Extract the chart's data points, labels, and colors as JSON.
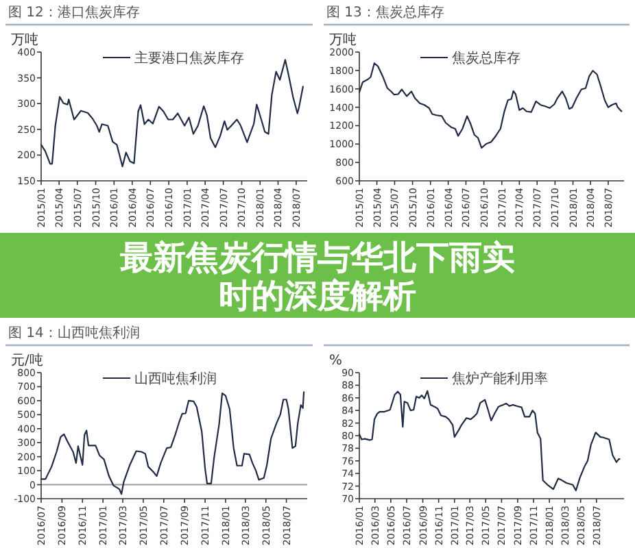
{
  "chart_data": [
    {
      "type": "line",
      "title": "图 12：港口焦炭库存",
      "ylabel": "万吨",
      "legend": "top",
      "marker": "none",
      "line_style": "solid",
      "xlim": [
        "2015-01-01",
        "2018-08-25"
      ],
      "ylim": [
        150,
        400
      ],
      "yticks": [
        150,
        200,
        250,
        300,
        350,
        400
      ],
      "xticks": [
        {
          "value": "2015-01",
          "label": "2015/01"
        },
        {
          "value": "2015-04",
          "label": "2015/04"
        },
        {
          "value": "2015-07",
          "label": "2015/07"
        },
        {
          "value": "2015-10",
          "label": "2015/10"
        },
        {
          "value": "2016-01",
          "label": "2016/01"
        },
        {
          "value": "2016-04",
          "label": "2016/04"
        },
        {
          "value": "2016-07",
          "label": "2016/07"
        },
        {
          "value": "2016-10",
          "label": "2016/10"
        },
        {
          "value": "2017-01",
          "label": "2017/01"
        },
        {
          "value": "2017-04",
          "label": "2017/04"
        },
        {
          "value": "2017-07",
          "label": "2017/07"
        },
        {
          "value": "2017-10",
          "label": "2017/10"
        },
        {
          "value": "2018-01",
          "label": "2018/01"
        },
        {
          "value": "2018-04",
          "label": "2018/04"
        },
        {
          "value": "2018-07",
          "label": "2018/07"
        }
      ],
      "series": [
        {
          "name": "主要港口焦炭库存",
          "color": "#1f2a44",
          "x": [
            "2015-01-01",
            "2015-01-21",
            "2015-02-15",
            "2015-02-25",
            "2015-03-13",
            "2015-04-04",
            "2015-04-22",
            "2015-05-13",
            "2015-05-19",
            "2015-06-15",
            "2015-07-19",
            "2015-08-22",
            "2015-09-15",
            "2015-10-07",
            "2015-10-19",
            "2015-11-01",
            "2015-12-01",
            "2015-12-25",
            "2016-01-15",
            "2016-02-12",
            "2016-03-01",
            "2016-03-21",
            "2016-04-10",
            "2016-05-01",
            "2016-05-13",
            "2016-06-01",
            "2016-06-21",
            "2016-07-13",
            "2016-08-13",
            "2016-09-04",
            "2016-09-28",
            "2016-10-21",
            "2016-11-15",
            "2016-12-19",
            "2017-01-10",
            "2017-02-01",
            "2017-02-24",
            "2017-03-25",
            "2017-04-10",
            "2017-04-28",
            "2017-05-22",
            "2017-06-15",
            "2017-07-07",
            "2017-07-21",
            "2017-08-10",
            "2017-09-07",
            "2017-09-25",
            "2017-10-28",
            "2017-12-01",
            "2017-12-15",
            "2018-01-04",
            "2018-01-25",
            "2018-02-12",
            "2018-03-01",
            "2018-03-22",
            "2018-04-10",
            "2018-05-07",
            "2018-05-25",
            "2018-06-15",
            "2018-07-07",
            "2018-07-15",
            "2018-08-04"
          ],
          "values": [
            220,
            208,
            183,
            183,
            257,
            313,
            301,
            298,
            308,
            269,
            286,
            282,
            271,
            257,
            245,
            260,
            257,
            226,
            220,
            178,
            205,
            188,
            184,
            285,
            297,
            260,
            269,
            261,
            294,
            285,
            269,
            269,
            281,
            257,
            273,
            241,
            257,
            295,
            277,
            233,
            215,
            237,
            266,
            249,
            257,
            269,
            258,
            225,
            261,
            298,
            273,
            245,
            241,
            317,
            362,
            346,
            385,
            353,
            313,
            281,
            293,
            333
          ]
        }
      ]
    },
    {
      "type": "line",
      "title": "图 13：焦炭总库存",
      "ylabel": "万吨",
      "legend": "top",
      "marker": "none",
      "line_style": "solid",
      "xlim": [
        "2015-01-01",
        "2018-09-20"
      ],
      "ylim": [
        600,
        2000
      ],
      "yticks": [
        600,
        800,
        1000,
        1200,
        1400,
        1600,
        1800,
        2000
      ],
      "xticks": [
        {
          "value": "2015-01",
          "label": "2015/01"
        },
        {
          "value": "2015-04",
          "label": "2015/04"
        },
        {
          "value": "2015-07",
          "label": "2015/07"
        },
        {
          "value": "2015-10",
          "label": "2015/10"
        },
        {
          "value": "2016-01",
          "label": "2016/01"
        },
        {
          "value": "2016-04",
          "label": "2016/04"
        },
        {
          "value": "2016-07",
          "label": "2016/07"
        },
        {
          "value": "2016-10",
          "label": "2016/10"
        },
        {
          "value": "2017-01",
          "label": "2017/01"
        },
        {
          "value": "2017-04",
          "label": "2017/04"
        },
        {
          "value": "2017-07",
          "label": "2017/07"
        },
        {
          "value": "2017-10",
          "label": "2017/10"
        },
        {
          "value": "2018-01",
          "label": "2018/01"
        },
        {
          "value": "2018-04",
          "label": "2018/04"
        },
        {
          "value": "2018-07",
          "label": "2018/07"
        }
      ],
      "series": [
        {
          "name": "焦炭总库存",
          "color": "#1f2a44",
          "x": [
            "2015-01-01",
            "2015-01-18",
            "2015-02-13",
            "2015-02-28",
            "2015-03-19",
            "2015-04-07",
            "2015-05-01",
            "2015-05-25",
            "2015-06-13",
            "2015-06-28",
            "2015-07-19",
            "2015-08-07",
            "2015-09-01",
            "2015-09-25",
            "2015-10-13",
            "2015-11-07",
            "2015-12-01",
            "2015-12-25",
            "2016-01-10",
            "2016-02-01",
            "2016-02-28",
            "2016-03-19",
            "2016-04-16",
            "2016-05-07",
            "2016-05-22",
            "2016-06-13",
            "2016-07-07",
            "2016-07-25",
            "2016-08-13",
            "2016-09-01",
            "2016-09-19",
            "2016-10-13",
            "2016-11-07",
            "2016-12-01",
            "2016-12-25",
            "2017-01-13",
            "2017-02-01",
            "2017-02-19",
            "2017-03-01",
            "2017-03-13",
            "2017-04-01",
            "2017-04-19",
            "2017-05-07",
            "2017-06-01",
            "2017-06-25",
            "2017-07-19",
            "2017-08-10",
            "2017-09-04",
            "2017-09-28",
            "2017-10-13",
            "2017-11-07",
            "2017-11-25",
            "2017-12-13",
            "2017-12-28",
            "2018-01-19",
            "2018-02-13",
            "2018-03-07",
            "2018-03-25",
            "2018-04-13",
            "2018-05-04",
            "2018-05-19",
            "2018-06-13",
            "2018-07-01",
            "2018-07-19",
            "2018-08-10",
            "2018-08-19",
            "2018-09-07"
          ],
          "values": [
            1564,
            1672,
            1702,
            1728,
            1879,
            1844,
            1736,
            1607,
            1572,
            1538,
            1542,
            1594,
            1520,
            1572,
            1499,
            1443,
            1425,
            1391,
            1326,
            1313,
            1304,
            1231,
            1183,
            1166,
            1088,
            1166,
            1304,
            1218,
            1101,
            1067,
            959,
            1002,
            1023,
            1088,
            1166,
            1347,
            1477,
            1490,
            1576,
            1542,
            1369,
            1391,
            1356,
            1347,
            1464,
            1425,
            1412,
            1391,
            1434,
            1499,
            1572,
            1499,
            1382,
            1399,
            1499,
            1594,
            1607,
            1736,
            1797,
            1758,
            1659,
            1477,
            1399,
            1425,
            1443,
            1399,
            1356
          ]
        }
      ]
    },
    {
      "type": "line",
      "title": "图 14：山西吨焦利润",
      "ylabel": "元/吨",
      "legend": "top",
      "marker": "none",
      "line_style": "solid",
      "xlim": [
        "2016-07-01",
        "2018-09-01"
      ],
      "ylim": [
        -100,
        800
      ],
      "yticks": [
        -100,
        0,
        100,
        200,
        300,
        400,
        500,
        600,
        700,
        800
      ],
      "xticks": [
        {
          "value": "2016-07",
          "label": "2016/07"
        },
        {
          "value": "2016-09",
          "label": "2016/09"
        },
        {
          "value": "2016-11",
          "label": "2016/11"
        },
        {
          "value": "2017-01",
          "label": "2017/01"
        },
        {
          "value": "2017-03",
          "label": "2017/03"
        },
        {
          "value": "2017-05",
          "label": "2017/05"
        },
        {
          "value": "2017-07",
          "label": "2017/07"
        },
        {
          "value": "2017-09",
          "label": "2017/09"
        },
        {
          "value": "2017-11",
          "label": "2017/11"
        },
        {
          "value": "2018-01",
          "label": "2018/01"
        },
        {
          "value": "2018-03",
          "label": "2018/03"
        },
        {
          "value": "2018-05",
          "label": "2018/05"
        },
        {
          "value": "2018-07",
          "label": "2018/07"
        }
      ],
      "ref_lines": [
        {
          "axis": "y",
          "value": 0,
          "color": "#9a9a9a"
        }
      ],
      "series": [
        {
          "name": "山西吨焦利润",
          "color": "#1f2a44",
          "x": [
            "2016-07-01",
            "2016-07-14",
            "2016-08-01",
            "2016-08-16",
            "2016-08-28",
            "2016-09-07",
            "2016-09-19",
            "2016-10-04",
            "2016-10-13",
            "2016-10-19",
            "2016-11-01",
            "2016-11-07",
            "2016-11-13",
            "2016-11-19",
            "2016-12-10",
            "2016-12-22",
            "2017-01-04",
            "2017-01-19",
            "2017-02-01",
            "2017-02-19",
            "2017-02-25",
            "2017-03-04",
            "2017-03-22",
            "2017-04-10",
            "2017-04-25",
            "2017-05-07",
            "2017-05-16",
            "2017-06-01",
            "2017-06-10",
            "2017-06-22",
            "2017-07-10",
            "2017-07-22",
            "2017-08-04",
            "2017-08-16",
            "2017-08-25",
            "2017-09-04",
            "2017-09-13",
            "2017-09-28",
            "2017-10-07",
            "2017-10-22",
            "2017-11-01",
            "2017-11-07",
            "2017-11-19",
            "2017-11-28",
            "2017-12-13",
            "2017-12-22",
            "2018-01-01",
            "2018-01-13",
            "2018-01-25",
            "2018-02-04",
            "2018-02-19",
            "2018-02-25",
            "2018-03-13",
            "2018-03-22",
            "2018-04-01",
            "2018-04-10",
            "2018-04-25",
            "2018-05-04",
            "2018-05-16",
            "2018-06-01",
            "2018-06-13",
            "2018-06-22",
            "2018-07-01",
            "2018-07-07",
            "2018-07-19",
            "2018-07-28",
            "2018-08-04",
            "2018-08-13",
            "2018-08-19",
            "2018-08-22"
          ],
          "values": [
            40,
            40,
            128,
            235,
            341,
            360,
            301,
            235,
            155,
            275,
            141,
            355,
            387,
            280,
            280,
            208,
            181,
            61,
            -5,
            -32,
            -67,
            21,
            141,
            240,
            235,
            221,
            128,
            88,
            61,
            155,
            261,
            267,
            355,
            448,
            507,
            509,
            600,
            595,
            555,
            381,
            115,
            8,
            8,
            195,
            435,
            653,
            635,
            541,
            261,
            136,
            136,
            221,
            216,
            155,
            101,
            35,
            48,
            141,
            328,
            435,
            501,
            608,
            608,
            541,
            261,
            275,
            440,
            568,
            547,
            661
          ]
        }
      ]
    },
    {
      "type": "line",
      "ylabel": "%",
      "legend": "top",
      "marker": "none",
      "line_style": "solid",
      "xlim": [
        "2016-01-01",
        "2018-10-15"
      ],
      "ylim": [
        70,
        90
      ],
      "yticks": [
        70,
        72,
        74,
        76,
        78,
        80,
        82,
        84,
        86,
        88,
        90
      ],
      "xticks": [
        {
          "value": "2016-01",
          "label": "2016/01"
        },
        {
          "value": "2016-03",
          "label": "2016/03"
        },
        {
          "value": "2016-05",
          "label": "2016/05"
        },
        {
          "value": "2016-07",
          "label": "2016/07"
        },
        {
          "value": "2016-09",
          "label": "2016/09"
        },
        {
          "value": "2016-11",
          "label": "2016/11"
        },
        {
          "value": "2017-01",
          "label": "2017/01"
        },
        {
          "value": "2017-03",
          "label": "2017/03"
        },
        {
          "value": "2017-05",
          "label": "2017/05"
        },
        {
          "value": "2017-07",
          "label": "2017/07"
        },
        {
          "value": "2017-09",
          "label": "2017/09"
        },
        {
          "value": "2017-11",
          "label": "2017/11"
        },
        {
          "value": "2018-01",
          "label": "2018/01"
        },
        {
          "value": "2018-03",
          "label": "2018/03"
        },
        {
          "value": "2018-05",
          "label": "2018/05"
        },
        {
          "value": "2018-07",
          "label": "2018/07"
        }
      ],
      "series": [
        {
          "name": "焦炉产能利用率",
          "color": "#1f2a44",
          "x": [
            "2016-01-01",
            "2016-01-10",
            "2016-01-22",
            "2016-02-10",
            "2016-02-19",
            "2016-02-28",
            "2016-03-10",
            "2016-03-19",
            "2016-04-07",
            "2016-04-28",
            "2016-05-16",
            "2016-05-28",
            "2016-06-07",
            "2016-06-16",
            "2016-06-22",
            "2016-07-04",
            "2016-07-16",
            "2016-07-28",
            "2016-08-07",
            "2016-08-19",
            "2016-08-28",
            "2016-09-07",
            "2016-09-19",
            "2016-10-01",
            "2016-10-16",
            "2016-10-28",
            "2016-11-10",
            "2016-11-28",
            "2016-12-10",
            "2016-12-25",
            "2017-01-01",
            "2017-01-16",
            "2017-01-28",
            "2017-02-16",
            "2017-03-04",
            "2017-03-16",
            "2017-03-28",
            "2017-04-10",
            "2017-04-28",
            "2017-05-10",
            "2017-05-22",
            "2017-06-04",
            "2017-06-19",
            "2017-07-07",
            "2017-07-19",
            "2017-08-01",
            "2017-08-13",
            "2017-08-28",
            "2017-09-16",
            "2017-09-28",
            "2017-10-16",
            "2017-10-28",
            "2017-11-07",
            "2017-11-16",
            "2017-11-28",
            "2017-12-07",
            "2017-12-25",
            "2018-01-16",
            "2018-02-04",
            "2018-02-19",
            "2018-03-07",
            "2018-04-01",
            "2018-04-13",
            "2018-04-28",
            "2018-05-16",
            "2018-05-28",
            "2018-06-10",
            "2018-06-28",
            "2018-07-16",
            "2018-07-28",
            "2018-08-19",
            "2018-09-01",
            "2018-09-16",
            "2018-09-25",
            "2018-09-28"
          ],
          "values": [
            80.2,
            79.4,
            79.5,
            79.3,
            79.4,
            82.6,
            83.5,
            83.8,
            83.8,
            84.1,
            86.5,
            87,
            86.5,
            81.4,
            85.4,
            85.2,
            84,
            84.1,
            86.2,
            86,
            86.4,
            85.9,
            87.1,
            84.9,
            84.6,
            84.3,
            83.2,
            83,
            82.6,
            81.7,
            79.8,
            80.8,
            81.7,
            82.8,
            82.6,
            83,
            83.5,
            85.2,
            85.7,
            84.1,
            82.4,
            83.5,
            84.6,
            84.9,
            85.1,
            84.7,
            84.9,
            84.7,
            84.5,
            83,
            83,
            84,
            83.5,
            80.5,
            79.5,
            72.9,
            72.2,
            71.5,
            73.2,
            72.9,
            72.5,
            72.2,
            71.3,
            73.3,
            75.1,
            76,
            78.6,
            80.5,
            79.8,
            79.7,
            79.4,
            76.9,
            75.8,
            76.3,
            76.3
          ]
        }
      ]
    },
    {
      "type": "other",
      "title": "最新焦炭行情与华北下雨实时的深度解析"
    }
  ]
}
